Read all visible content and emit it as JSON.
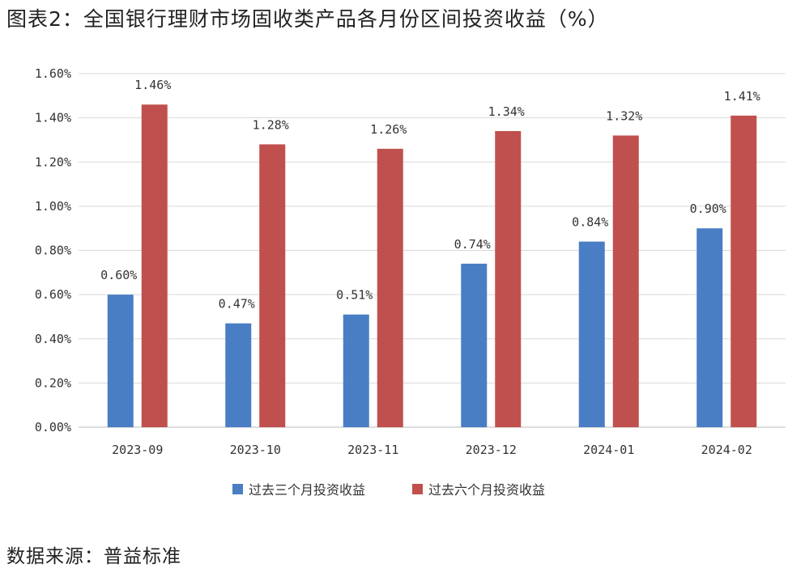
{
  "title": "图表2：全国银行理财市场固收类产品各月份区间投资收益（%）",
  "source": "数据来源：普益标准",
  "chart_data": {
    "type": "bar",
    "title": "图表2：全国银行理财市场固收类产品各月份区间投资收益（%）",
    "xlabel": "",
    "ylabel": "",
    "ylim": [
      0,
      1.6
    ],
    "yticks": [
      "0.00%",
      "0.20%",
      "0.40%",
      "0.60%",
      "0.80%",
      "1.00%",
      "1.20%",
      "1.40%",
      "1.60%"
    ],
    "grid": true,
    "legend_position": "bottom",
    "categories": [
      "2023-09",
      "2023-10",
      "2023-11",
      "2023-12",
      "2024-01",
      "2024-02"
    ],
    "series": [
      {
        "name": "过去三个月投资收益",
        "color": "#4a7ec4",
        "values": [
          0.6,
          0.47,
          0.51,
          0.74,
          0.84,
          0.9
        ],
        "labels": [
          "0.60%",
          "0.47%",
          "0.51%",
          "0.74%",
          "0.84%",
          "0.90%"
        ]
      },
      {
        "name": "过去六个月投资收益",
        "color": "#c0504d",
        "values": [
          1.46,
          1.28,
          1.26,
          1.34,
          1.32,
          1.41
        ],
        "labels": [
          "1.46%",
          "1.28%",
          "1.26%",
          "1.34%",
          "1.32%",
          "1.41%"
        ]
      }
    ]
  }
}
